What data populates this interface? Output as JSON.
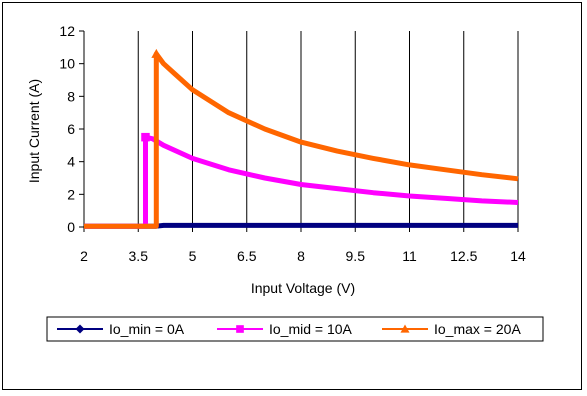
{
  "chart_data": {
    "type": "line",
    "title": "",
    "xlabel": "Input Voltage (V)",
    "ylabel": "Input Current (A)",
    "xlim": [
      2,
      14
    ],
    "ylim": [
      0,
      12
    ],
    "x_ticks": [
      "2",
      "3.5",
      "5",
      "6.5",
      "8",
      "9.5",
      "11",
      "12.5",
      "14"
    ],
    "y_ticks": [
      "0",
      "2",
      "4",
      "6",
      "8",
      "10",
      "12"
    ],
    "grid": "vertical",
    "legend_position": "bottom",
    "series": [
      {
        "name": "Io_min = 0A",
        "color": "#000080",
        "marker": "diamond",
        "points": [
          [
            2.0,
            0.05
          ],
          [
            3.0,
            0.05
          ],
          [
            4.0,
            0.05
          ],
          [
            4.2,
            0.1
          ],
          [
            5.0,
            0.1
          ],
          [
            6.0,
            0.1
          ],
          [
            7.0,
            0.1
          ],
          [
            8.0,
            0.1
          ],
          [
            9.0,
            0.1
          ],
          [
            10.0,
            0.1
          ],
          [
            11.0,
            0.1
          ],
          [
            12.0,
            0.1
          ],
          [
            13.0,
            0.1
          ],
          [
            14.0,
            0.1
          ]
        ]
      },
      {
        "name": "Io_mid = 10A",
        "color": "#FF00FF",
        "marker": "square",
        "points": [
          [
            2.0,
            0.05
          ],
          [
            3.0,
            0.05
          ],
          [
            3.7,
            0.05
          ],
          [
            3.7,
            5.5
          ],
          [
            3.9,
            5.4
          ],
          [
            4.2,
            5.0
          ],
          [
            5.0,
            4.2
          ],
          [
            6.0,
            3.5
          ],
          [
            7.0,
            3.0
          ],
          [
            8.0,
            2.6
          ],
          [
            9.0,
            2.35
          ],
          [
            10.0,
            2.1
          ],
          [
            11.0,
            1.9
          ],
          [
            12.0,
            1.75
          ],
          [
            13.0,
            1.6
          ],
          [
            14.0,
            1.5
          ]
        ]
      },
      {
        "name": "Io_max = 20A",
        "color": "#FF6600",
        "marker": "triangle",
        "points": [
          [
            2.0,
            0.05
          ],
          [
            3.0,
            0.05
          ],
          [
            4.0,
            0.05
          ],
          [
            4.0,
            10.6
          ],
          [
            4.2,
            10.0
          ],
          [
            4.5,
            9.4
          ],
          [
            5.0,
            8.4
          ],
          [
            6.0,
            7.0
          ],
          [
            7.0,
            6.0
          ],
          [
            8.0,
            5.2
          ],
          [
            9.0,
            4.65
          ],
          [
            10.0,
            4.2
          ],
          [
            11.0,
            3.8
          ],
          [
            12.0,
            3.5
          ],
          [
            13.0,
            3.2
          ],
          [
            14.0,
            2.95
          ]
        ]
      }
    ]
  }
}
